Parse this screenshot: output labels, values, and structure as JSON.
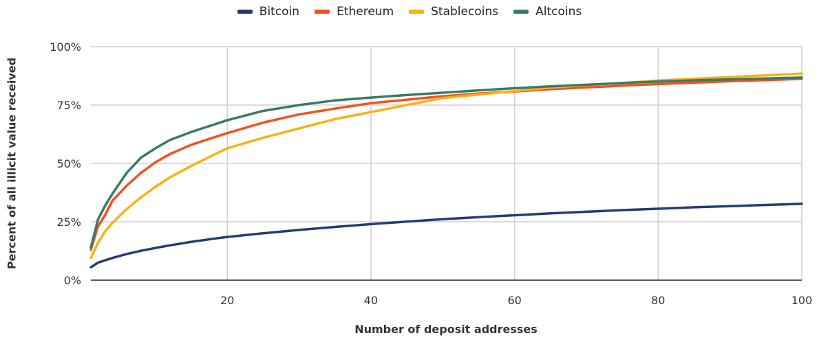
{
  "chart_data": {
    "type": "line",
    "title": "",
    "xlabel": "Number of deposit addresses",
    "ylabel": "Percent of all illicit value received",
    "xlim": [
      1,
      100
    ],
    "ylim": [
      0,
      100
    ],
    "xticks": [
      20,
      40,
      60,
      80,
      100
    ],
    "yticks": [
      0,
      25,
      50,
      75,
      100
    ],
    "ytick_labels": [
      "0%",
      "25%",
      "50%",
      "75%",
      "100%"
    ],
    "grid": true,
    "legend_position": "top-center",
    "x": [
      1,
      2,
      3,
      4,
      6,
      8,
      10,
      12,
      15,
      18,
      20,
      25,
      30,
      35,
      40,
      45,
      50,
      55,
      60,
      65,
      70,
      75,
      80,
      85,
      90,
      95,
      100
    ],
    "series": [
      {
        "name": "Bitcoin",
        "color": "#283a74",
        "values": [
          5.5,
          7.5,
          8.5,
          9.5,
          11.2,
          12.6,
          13.8,
          14.9,
          16.4,
          17.7,
          18.5,
          20.1,
          21.5,
          22.8,
          24.0,
          25.1,
          26.1,
          27.0,
          27.8,
          28.6,
          29.3,
          30.0,
          30.6,
          31.2,
          31.7,
          32.2,
          32.7
        ]
      },
      {
        "name": "Ethereum",
        "color": "#f4511e",
        "values": [
          13,
          23,
          28,
          34,
          40.5,
          46,
          50.5,
          54,
          58,
          61,
          63,
          67.5,
          71,
          73.5,
          75.8,
          77.3,
          78.8,
          79.9,
          80.8,
          81.8,
          82.6,
          83.3,
          84,
          84.6,
          85.2,
          85.7,
          86.2
        ]
      },
      {
        "name": "Stablecoins",
        "color": "#fbb017",
        "values": [
          9.5,
          16,
          21,
          24.5,
          30.5,
          35.5,
          40,
          44,
          49,
          53.5,
          56.5,
          61,
          65,
          69,
          72,
          75,
          78,
          79.5,
          81,
          82.5,
          83.5,
          84.5,
          85.5,
          86.3,
          87,
          87.7,
          88.5
        ]
      },
      {
        "name": "Altcoins",
        "color": "#3a7a67",
        "values": [
          14,
          26,
          32,
          37,
          46,
          52.5,
          56.5,
          60,
          63.5,
          66.5,
          68.5,
          72.5,
          75,
          77,
          78.2,
          79.3,
          80.3,
          81.3,
          82.2,
          83,
          83.7,
          84.4,
          85.1,
          85.6,
          86,
          86.4,
          86.8
        ]
      }
    ]
  }
}
